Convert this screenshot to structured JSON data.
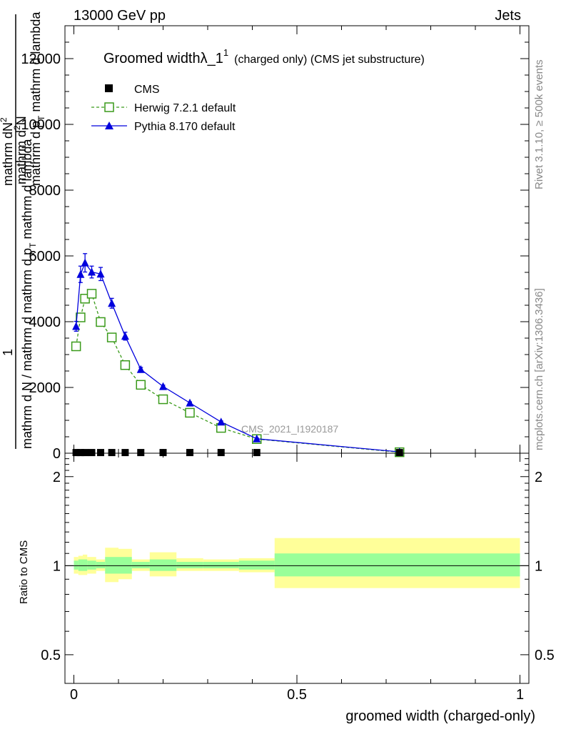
{
  "header": {
    "left": "13000 GeV pp",
    "right": "Jets"
  },
  "side_labels": {
    "rivet": "Rivet 3.1.10, ≥ 500k events",
    "mcplots": "mcplots.cern.ch [arXiv:1306.3436]"
  },
  "analysis_tag": "CMS_2021_I1920187",
  "chart_data": [
    {
      "type": "line",
      "title_main": "Groomed widthλ_1",
      "title_sup": "1",
      "title_rest": "(charged only) (CMS jet substructure)",
      "ylabel": {
        "prefix": "1",
        "frac_num": "mathrm d N / mathrm d mathrm d p",
        "frac_num_sub": "T",
        "frac_num_rest": " mathrm d lambda",
        "frac_den": "mathrm dN",
        "frac_den_sup": "2",
        "top_num": "mathrm d",
        "top_num_sup": "2",
        "top_num_rest": "N",
        "top_den": "mathrm d p",
        "top_den_sub": "T",
        "top_den_rest": " mathrm d lambda"
      },
      "ylim": [
        0,
        13000
      ],
      "xlim": [
        -0.02,
        1.02
      ],
      "y_ticks": [
        "0",
        "2000",
        "4000",
        "6000",
        "8000",
        "10000",
        "12000"
      ],
      "y_tick_values": [
        0,
        2000,
        4000,
        6000,
        8000,
        10000,
        12000
      ],
      "legend_position": "top-left",
      "legend": [
        {
          "label": "CMS",
          "marker": "filled-square",
          "color": "#000000"
        },
        {
          "label": "Herwig 7.2.1 default",
          "marker": "open-square",
          "color": "#3a9a1a",
          "dash": true
        },
        {
          "label": "Pythia 8.170 default",
          "marker": "filled-triangle",
          "color": "#0000dd"
        }
      ],
      "series": [
        {
          "name": "CMS",
          "x": [
            0.005,
            0.015,
            0.025,
            0.04,
            0.06,
            0.085,
            0.115,
            0.15,
            0.2,
            0.26,
            0.33,
            0.41,
            0.73
          ],
          "y": [
            20,
            20,
            20,
            20,
            20,
            20,
            20,
            20,
            20,
            20,
            20,
            20,
            20
          ]
        },
        {
          "name": "Herwig 7.2.1 default",
          "x": [
            0.005,
            0.015,
            0.025,
            0.04,
            0.06,
            0.085,
            0.115,
            0.15,
            0.2,
            0.26,
            0.33,
            0.41,
            0.73
          ],
          "y": [
            3250,
            4130,
            4700,
            4850,
            3990,
            3520,
            2680,
            2080,
            1640,
            1230,
            770,
            430,
            30
          ],
          "err": [
            80,
            80,
            80,
            80,
            80,
            60,
            60,
            50,
            40,
            30,
            30,
            20,
            10
          ]
        },
        {
          "name": "Pythia 8.170 default",
          "x": [
            0.005,
            0.015,
            0.025,
            0.04,
            0.06,
            0.085,
            0.115,
            0.15,
            0.2,
            0.26,
            0.33,
            0.41,
            0.73
          ],
          "y": [
            3860,
            5440,
            5790,
            5510,
            5450,
            4560,
            3560,
            2550,
            2030,
            1530,
            950,
            440,
            40
          ],
          "err": [
            150,
            250,
            280,
            180,
            200,
            150,
            120,
            60,
            40,
            30,
            30,
            20,
            10
          ]
        }
      ]
    },
    {
      "type": "area",
      "ylabel": "Ratio to CMS",
      "xlabel": "groomed width (charged-only)",
      "ylim": [
        0.4,
        2.4
      ],
      "log_y": true,
      "y_ticks": [
        "0.5",
        "1",
        "2"
      ],
      "y_tick_values": [
        0.5,
        1,
        2
      ],
      "x_ticks": [
        "0",
        "0.5",
        "1"
      ],
      "x_tick_values": [
        0,
        0.5,
        1
      ],
      "ratio_line": 1,
      "bins": [
        {
          "lo": 0.0,
          "hi": 0.01,
          "in": [
            0.97,
            1.04
          ],
          "out": [
            0.94,
            1.07
          ]
        },
        {
          "lo": 0.01,
          "hi": 0.02,
          "in": [
            0.96,
            1.05
          ],
          "out": [
            0.93,
            1.08
          ]
        },
        {
          "lo": 0.02,
          "hi": 0.03,
          "in": [
            0.96,
            1.05
          ],
          "out": [
            0.93,
            1.09
          ]
        },
        {
          "lo": 0.03,
          "hi": 0.05,
          "in": [
            0.97,
            1.04
          ],
          "out": [
            0.94,
            1.07
          ]
        },
        {
          "lo": 0.05,
          "hi": 0.07,
          "in": [
            0.98,
            1.03
          ],
          "out": [
            0.96,
            1.05
          ]
        },
        {
          "lo": 0.07,
          "hi": 0.1,
          "in": [
            0.94,
            1.07
          ],
          "out": [
            0.88,
            1.15
          ]
        },
        {
          "lo": 0.1,
          "hi": 0.13,
          "in": [
            0.94,
            1.07
          ],
          "out": [
            0.9,
            1.14
          ]
        },
        {
          "lo": 0.13,
          "hi": 0.17,
          "in": [
            0.98,
            1.03
          ],
          "out": [
            0.96,
            1.05
          ]
        },
        {
          "lo": 0.17,
          "hi": 0.23,
          "in": [
            0.96,
            1.05
          ],
          "out": [
            0.92,
            1.11
          ]
        },
        {
          "lo": 0.23,
          "hi": 0.29,
          "in": [
            0.98,
            1.03
          ],
          "out": [
            0.96,
            1.06
          ]
        },
        {
          "lo": 0.29,
          "hi": 0.37,
          "in": [
            0.98,
            1.03
          ],
          "out": [
            0.96,
            1.05
          ]
        },
        {
          "lo": 0.37,
          "hi": 0.45,
          "in": [
            0.97,
            1.04
          ],
          "out": [
            0.95,
            1.06
          ]
        },
        {
          "lo": 0.45,
          "hi": 1.0,
          "in": [
            0.92,
            1.1
          ],
          "out": [
            0.84,
            1.24
          ]
        }
      ]
    }
  ]
}
